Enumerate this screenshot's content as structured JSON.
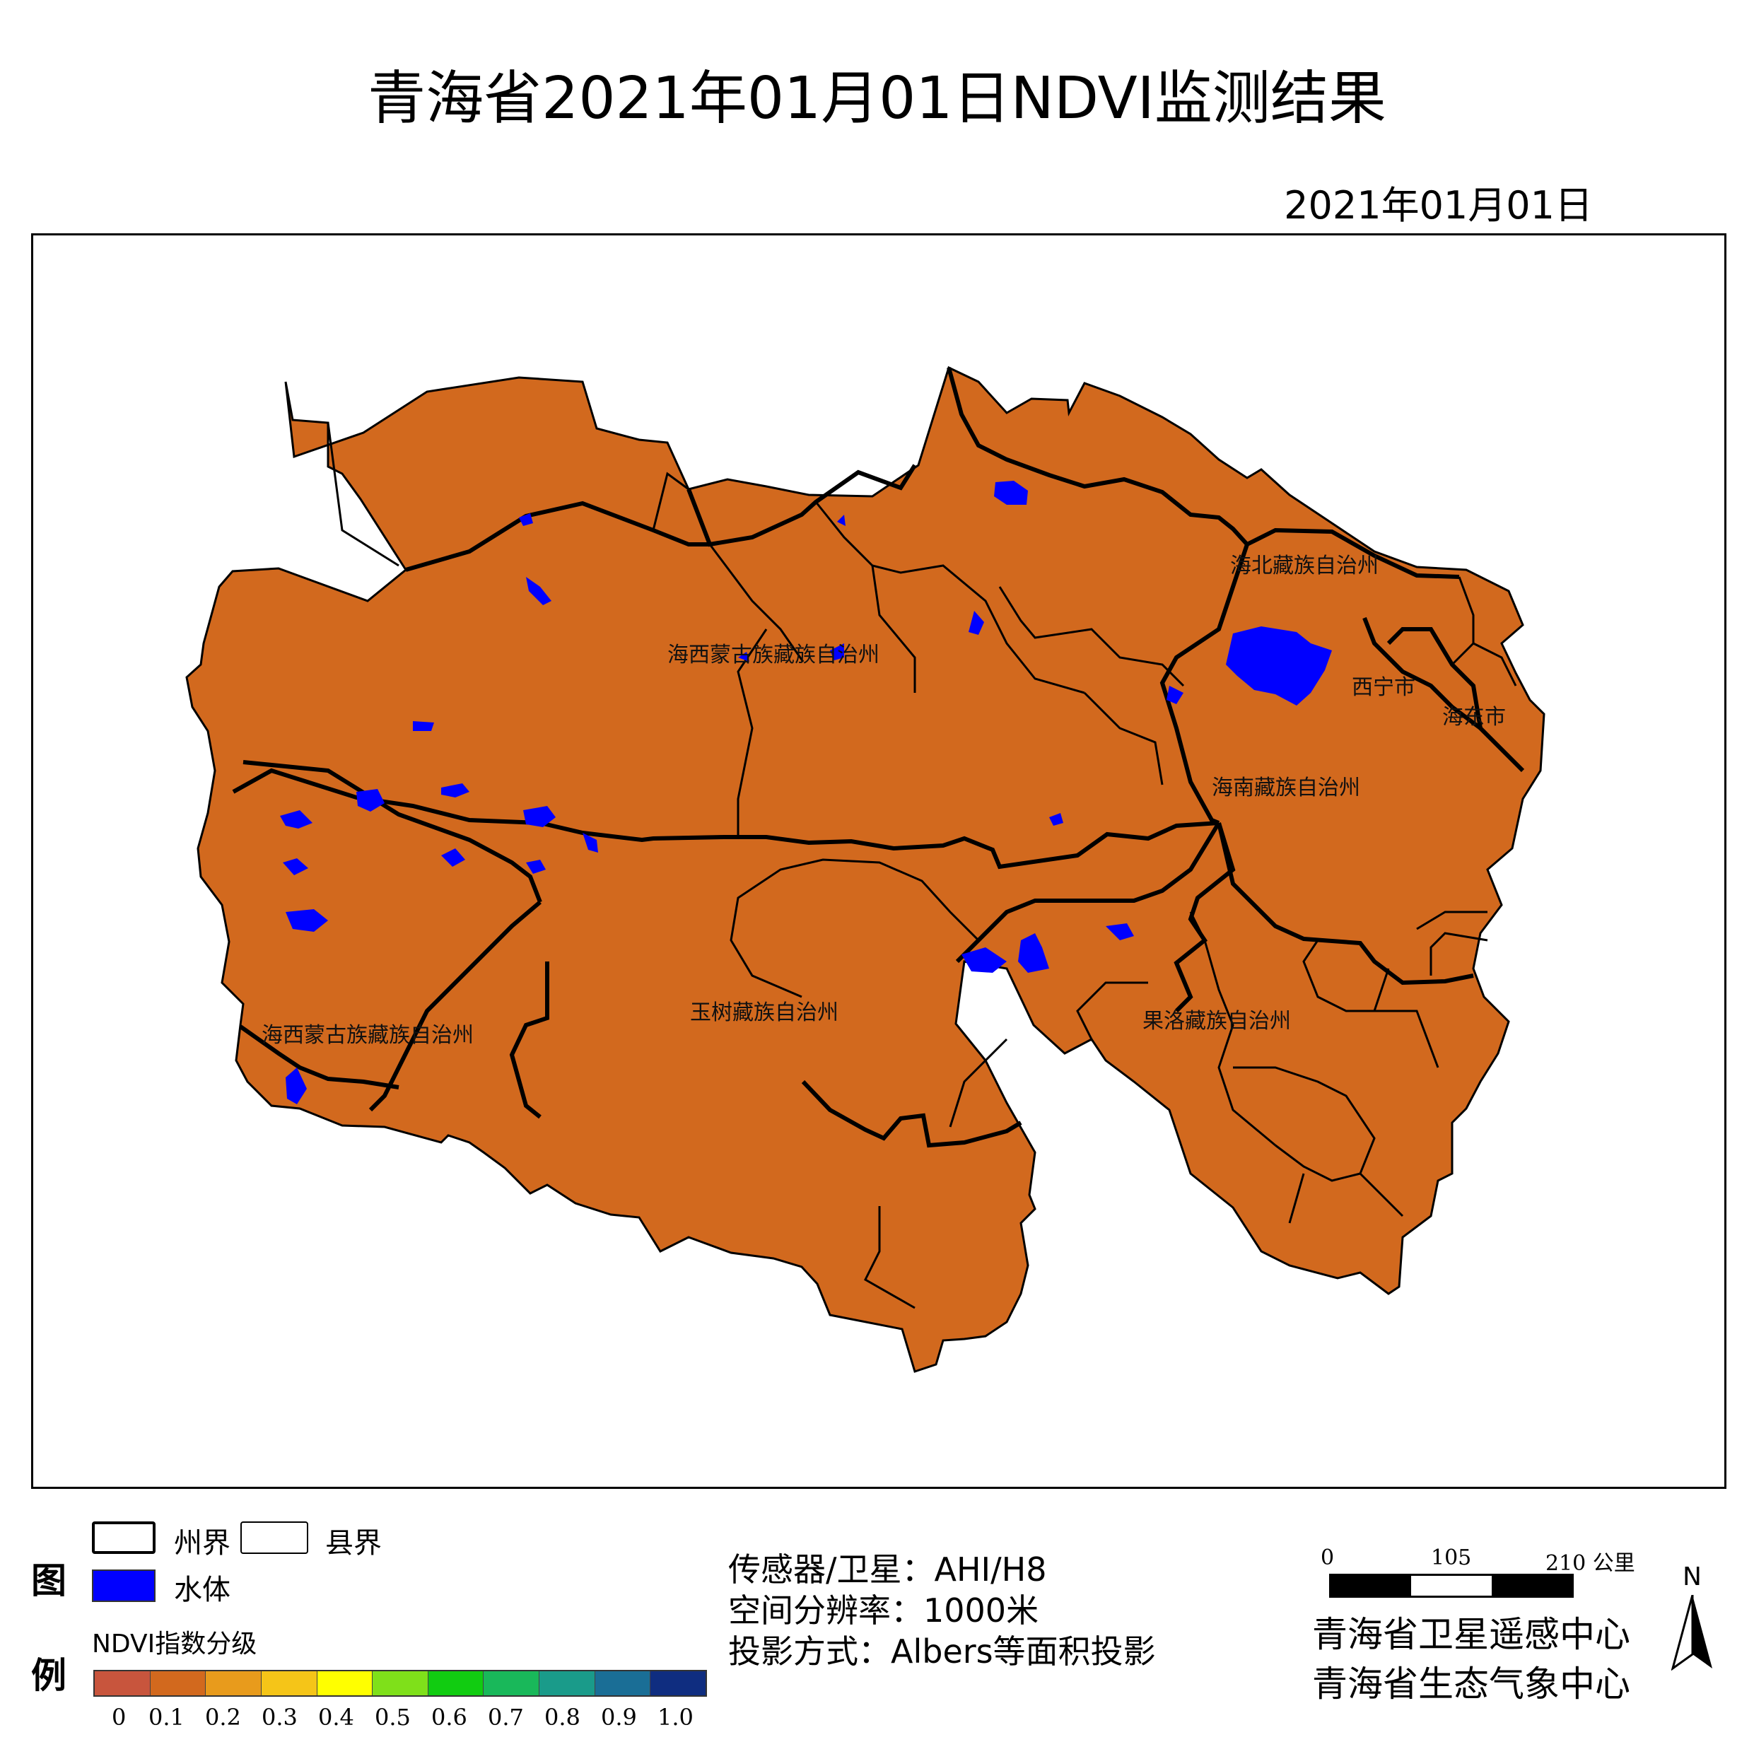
{
  "title": "青海省2021年01月01日NDVI监测结果",
  "date": "2021年01月01日",
  "map": {
    "region_labels": [
      "海西蒙古族藏族自治州",
      "海西蒙古族藏族自治州",
      "玉树藏族自治州",
      "海北藏族自治州",
      "西宁市",
      "海东市",
      "海南藏族自治州",
      "果洛藏族自治州"
    ],
    "colors": {
      "land": "#d2691e",
      "water": "#0000ff",
      "border": "#000000"
    }
  },
  "legend": {
    "title_top": "图",
    "title_bottom": "例",
    "prefecture_border": "州界",
    "county_border": "县界",
    "water": "水体",
    "ndvi_title": "NDVI指数分级",
    "ramp_colors": [
      "#c8553d",
      "#d2691e",
      "#e89b1c",
      "#f5c518",
      "#ffff00",
      "#7fe01a",
      "#11cc11",
      "#19b85a",
      "#1a9b8a",
      "#1a6e96",
      "#0f2d80"
    ],
    "ticks": [
      "0",
      "0.1",
      "0.2",
      "0.3",
      "0.4",
      "0.5",
      "0.6",
      "0.7",
      "0.8",
      "0.9",
      "1.0"
    ]
  },
  "info": {
    "sensor": "传感器/卫星：AHI/H8",
    "resolution": "空间分辨率：1000米",
    "projection": "投影方式：Albers等面积投影"
  },
  "scale_bar": {
    "labels": [
      "0",
      "105",
      "210 公里"
    ]
  },
  "north_arrow": {
    "label": "N"
  },
  "orgs": [
    "青海省卫星遥感中心",
    "青海省生态气象中心"
  ]
}
